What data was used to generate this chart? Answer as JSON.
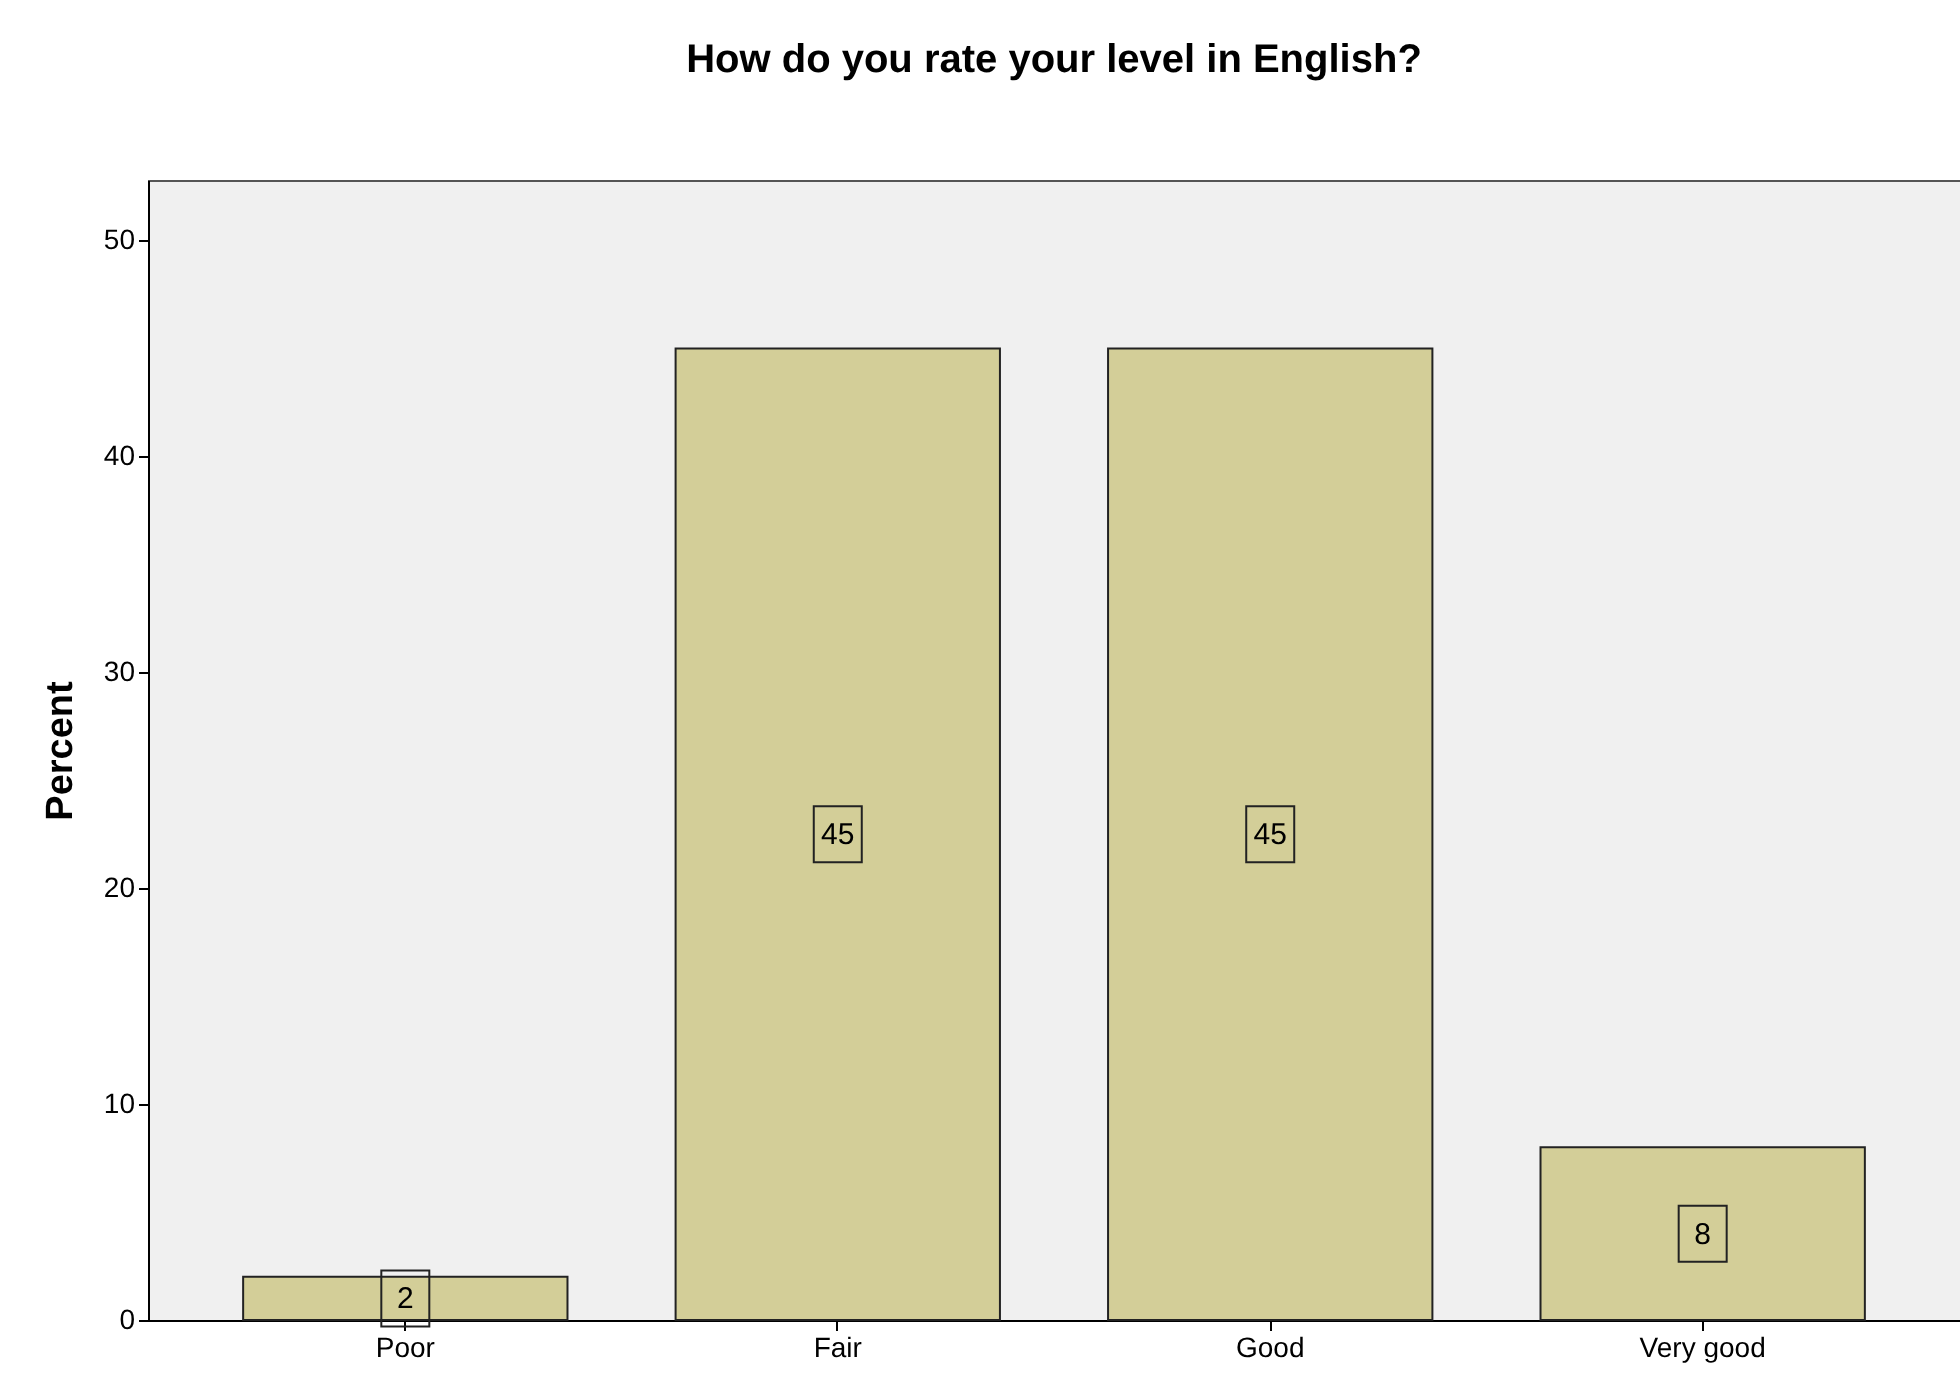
{
  "chart_data": {
    "type": "bar",
    "title": "How do you rate your level in English?",
    "ylabel": "Percent",
    "categories": [
      "Poor",
      "Fair",
      "Good",
      "Very good"
    ],
    "values": [
      2,
      45,
      45,
      8
    ],
    "color": "#d3ce98",
    "ylim": [
      0,
      52.8
    ],
    "yticks": [
      0,
      10,
      20,
      30,
      40,
      50
    ],
    "grid": false,
    "data_labels": true
  }
}
